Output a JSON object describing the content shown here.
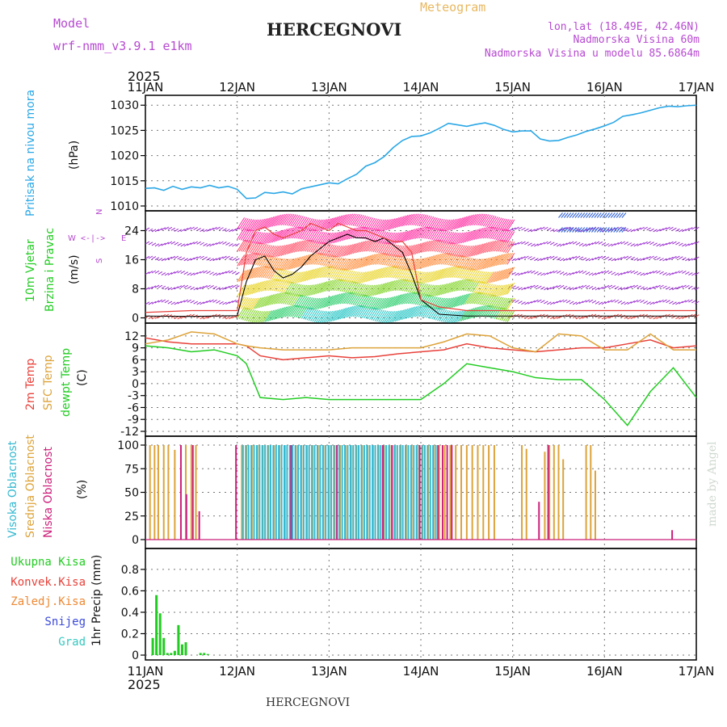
{
  "header": {
    "model_label": "Model",
    "model_name": "wrf-nmm_v3.9.1 e1km",
    "meteogram": "Meteogram",
    "station": "HERCEGNOVI",
    "lonlat": "lon,lat (18.49E, 42.46N)",
    "altitude": "Nadmorska Visina 60m",
    "model_altitude": "Nadmorska Visina u modelu 85.6864m",
    "year_top": "2025",
    "year_bottom": "2025",
    "footer_station": "HERCEGNOVI",
    "credit": "made by Angel"
  },
  "colors": {
    "pressure": "#2aa7e6",
    "temp2m": "#e8413a",
    "sfc": "#dda33a",
    "dewpt": "#22cc22",
    "high_cloud": "#35b8d0",
    "mid_cloud": "#dda33a",
    "low_cloud": "#cc1f7a",
    "precip_total": "#22cc22",
    "precip_conv": "#e8413a",
    "precip_frz": "#ee8833",
    "precip_snow": "#3b4ad8",
    "precip_hail": "#35c8c0",
    "label_magenta": "#b74ad1",
    "label_orange": "#e8b860"
  },
  "chart_data": {
    "type": "meteogram",
    "x_ticks": [
      "11JAN",
      "12JAN",
      "13JAN",
      "14JAN",
      "15JAN",
      "16JAN",
      "17JAN"
    ],
    "x_range_days": [
      0,
      6
    ],
    "panels": [
      {
        "id": "pressure",
        "type": "line",
        "label": "Pritisak na nivou mora",
        "unit": "(hPa)",
        "ylim": [
          1010,
          1031
        ],
        "yticks": [
          1010,
          1015,
          1020,
          1025,
          1030
        ],
        "x": [
          0,
          0.1,
          0.2,
          0.3,
          0.4,
          0.5,
          0.6,
          0.7,
          0.8,
          0.9,
          1.0,
          1.1,
          1.2,
          1.3,
          1.4,
          1.5,
          1.6,
          1.7,
          1.8,
          1.9,
          2.0,
          2.1,
          2.2,
          2.3,
          2.4,
          2.5,
          2.6,
          2.7,
          2.8,
          2.9,
          3.0,
          3.1,
          3.2,
          3.3,
          3.4,
          3.5,
          3.6,
          3.7,
          3.8,
          3.9,
          4.0,
          4.1,
          4.2,
          4.3,
          4.4,
          4.5,
          4.6,
          4.7,
          4.8,
          4.9,
          5.0,
          5.1,
          5.2,
          5.3,
          5.4,
          5.5,
          5.6,
          5.7,
          5.8,
          5.9,
          6.0
        ],
        "y": [
          1013.5,
          1013.6,
          1013.1,
          1013.9,
          1013.3,
          1013.8,
          1013.6,
          1014.1,
          1013.6,
          1013.9,
          1013.3,
          1011.5,
          1011.6,
          1012.7,
          1012.5,
          1012.8,
          1012.4,
          1013.4,
          1013.8,
          1014.2,
          1014.6,
          1014.4,
          1015.4,
          1016.3,
          1017.9,
          1018.6,
          1019.8,
          1021.6,
          1023.0,
          1023.8,
          1023.9,
          1024.5,
          1025.4,
          1026.4,
          1026.1,
          1025.8,
          1026.2,
          1026.5,
          1026.0,
          1025.2,
          1024.7,
          1024.9,
          1024.9,
          1023.3,
          1022.9,
          1023.0,
          1023.6,
          1024.1,
          1024.8,
          1025.3,
          1025.9,
          1026.6,
          1027.8,
          1028.1,
          1028.5,
          1029.0,
          1029.5,
          1029.8,
          1029.7,
          1029.9,
          1030.0
        ]
      },
      {
        "id": "wind",
        "type": "wind_barbs",
        "labels": [
          "10m Vjetar",
          "Brzina i Pravac"
        ],
        "unit": "(m/s)",
        "ylim": [
          -1,
          29
        ],
        "yticks": [
          0,
          8,
          16,
          24
        ],
        "compass_top": "N",
        "compass_left": "W",
        "compass_right": "E",
        "compass_bottom": "S",
        "barb_levels": [
          0,
          4,
          8,
          12,
          16,
          20,
          24,
          28
        ],
        "strong_window_days": [
          1.0,
          3.95
        ],
        "blue_window_days": [
          4.5,
          5.2
        ],
        "speed_x": [
          0,
          0.5,
          1.0,
          1.1,
          1.2,
          1.3,
          1.4,
          1.5,
          1.6,
          1.7,
          1.8,
          1.9,
          2.0,
          2.1,
          2.2,
          2.3,
          2.4,
          2.5,
          2.6,
          2.7,
          2.8,
          2.9,
          3.0,
          3.2,
          3.5,
          4.0,
          5.0,
          6.0
        ],
        "speed_y": [
          0.5,
          0.4,
          0.6,
          10,
          16,
          17,
          13,
          11,
          12,
          14,
          17,
          19,
          21,
          22,
          23,
          22,
          22,
          21,
          22,
          20,
          18,
          12,
          5,
          1,
          0.5,
          0.5,
          0.5,
          0.5
        ],
        "gust_y": [
          1.5,
          2,
          2,
          18,
          24,
          25,
          23,
          22,
          23,
          24,
          26,
          25,
          24,
          26,
          25,
          24,
          24,
          23,
          22,
          21,
          21,
          18,
          5,
          3,
          2,
          2,
          2,
          2
        ]
      },
      {
        "id": "temperature",
        "type": "line",
        "labels": [
          "2m Temp",
          "SFC Temp",
          "dewpt Temp"
        ],
        "unit": "(C)",
        "ylim": [
          -12,
          14
        ],
        "yticks": [
          12,
          9,
          6,
          3,
          0,
          -3,
          -6,
          -9,
          -12
        ],
        "x": [
          0,
          0.25,
          0.5,
          0.75,
          1.0,
          1.1,
          1.25,
          1.5,
          1.75,
          2.0,
          2.25,
          2.5,
          2.75,
          3.0,
          3.25,
          3.5,
          3.75,
          4.0,
          4.25,
          4.5,
          4.75,
          5.0,
          5.25,
          5.5,
          5.75,
          6.0
        ],
        "series": [
          {
            "name": "2m Temp",
            "values": [
              11.5,
              10.5,
              10.0,
              10.0,
              10.0,
              9.5,
              7.0,
              6.0,
              6.5,
              7.0,
              6.5,
              6.8,
              7.5,
              8.0,
              8.5,
              10.0,
              9.0,
              8.5,
              8.0,
              8.5,
              9.0,
              9.0,
              10.0,
              11.0,
              9.0,
              9.5
            ]
          },
          {
            "name": "SFC Temp",
            "values": [
              10.0,
              11.0,
              13.0,
              12.5,
              10.0,
              9.5,
              9.0,
              8.5,
              8.5,
              8.5,
              9.0,
              9.0,
              9.0,
              9.0,
              10.5,
              12.5,
              12.0,
              9.0,
              8.0,
              12.5,
              12.0,
              8.5,
              8.5,
              12.5,
              8.5,
              8.5
            ]
          },
          {
            "name": "dewpt Temp",
            "values": [
              9.5,
              9.0,
              8.0,
              8.5,
              7.0,
              5.0,
              -3.5,
              -4.0,
              -3.5,
              -4.0,
              -4.0,
              -4.0,
              -4.0,
              -4.0,
              0.0,
              5.0,
              4.0,
              3.0,
              1.5,
              1.0,
              1.0,
              -4.0,
              -10.5,
              -2.0,
              4.0,
              -3.5
            ]
          }
        ]
      },
      {
        "id": "clouds",
        "type": "bar",
        "labels": [
          "Visoka Oblacnost",
          "Srednja Oblacnost",
          "Niska Oblacnost"
        ],
        "unit": "(%)",
        "ylim": [
          0,
          100
        ],
        "yticks": [
          0,
          25,
          50,
          75,
          100
        ],
        "high_x": [
          1.05,
          1.08,
          1.11,
          1.14,
          1.17,
          1.2,
          1.23,
          1.26,
          1.29,
          1.32,
          1.35,
          1.38,
          1.41,
          1.44,
          1.47,
          1.5,
          1.53,
          1.56,
          1.59,
          1.62,
          1.65,
          1.68,
          1.71,
          1.74,
          1.77,
          1.8,
          1.83,
          1.86,
          1.89,
          1.92,
          1.95,
          1.98,
          2.01,
          2.04,
          2.07,
          2.1,
          2.13,
          2.16,
          2.19,
          2.22,
          2.25,
          2.28,
          2.31,
          2.34,
          2.37,
          2.4,
          2.43,
          2.46,
          2.49,
          2.52,
          2.55,
          2.58,
          2.61,
          2.64,
          2.67,
          2.7,
          2.73,
          2.76,
          2.79,
          2.82,
          2.85,
          2.88,
          2.91,
          2.94,
          2.97,
          3.0,
          3.03,
          3.06,
          3.09,
          3.12,
          3.15
        ],
        "high_y": [
          100,
          100,
          100,
          100,
          100,
          100,
          100,
          100,
          100,
          100,
          100,
          100,
          100,
          100,
          100,
          100,
          100,
          100,
          100,
          100,
          100,
          100,
          100,
          100,
          100,
          100,
          100,
          100,
          100,
          100,
          100,
          100,
          100,
          100,
          100,
          100,
          100,
          100,
          100,
          100,
          100,
          100,
          100,
          100,
          100,
          100,
          100,
          100,
          100,
          100,
          100,
          100,
          100,
          100,
          100,
          100,
          100,
          100,
          100,
          100,
          100,
          100,
          100,
          100,
          100,
          100,
          100,
          100,
          100,
          100,
          100
        ],
        "mid_x": [
          0.05,
          0.1,
          0.14,
          0.2,
          0.25,
          0.32,
          0.44,
          0.5,
          0.55,
          1.05,
          1.1,
          1.16,
          1.22,
          1.28,
          1.34,
          1.4,
          1.46,
          1.52,
          1.58,
          1.64,
          1.7,
          1.76,
          1.82,
          1.88,
          1.94,
          2.0,
          2.06,
          2.12,
          2.18,
          2.24,
          2.3,
          2.36,
          2.42,
          2.48,
          2.54,
          2.6,
          2.66,
          2.72,
          2.78,
          2.84,
          2.9,
          2.96,
          3.02,
          3.08,
          3.14,
          3.2,
          3.26,
          3.32,
          3.38,
          3.44,
          3.5,
          3.56,
          3.62,
          3.68,
          3.74,
          3.8,
          4.1,
          4.15,
          4.35,
          4.4,
          4.45,
          4.5,
          4.55,
          4.8,
          4.85,
          4.9
        ],
        "mid_y": [
          100,
          100,
          100,
          100,
          100,
          95,
          100,
          100,
          100,
          100,
          100,
          100,
          100,
          100,
          100,
          100,
          100,
          100,
          100,
          100,
          100,
          100,
          100,
          100,
          100,
          100,
          100,
          100,
          100,
          100,
          100,
          100,
          100,
          100,
          100,
          100,
          100,
          100,
          100,
          100,
          100,
          100,
          100,
          100,
          100,
          100,
          100,
          100,
          100,
          100,
          100,
          100,
          100,
          100,
          100,
          100,
          100,
          96,
          93,
          100,
          100,
          100,
          85,
          100,
          100,
          73
        ],
        "low_x": [
          0.4,
          0.46,
          0.53,
          0.6,
          1.0,
          1.6,
          2.1,
          2.6,
          2.7,
          3.0,
          3.2,
          3.25,
          3.3,
          3.35,
          4.3,
          4.4,
          5.75
        ],
        "low_y": [
          100,
          48,
          100,
          30,
          100,
          100,
          100,
          100,
          100,
          100,
          100,
          100,
          100,
          100,
          40,
          100,
          10
        ]
      },
      {
        "id": "precip",
        "type": "bar",
        "labels": [
          "Ukupna Kisa",
          "Konvek.Kisa",
          "Zaledj.Kisa",
          "Snijeg",
          "Grad"
        ],
        "unit": "1hr Precip (mm)",
        "ylim": [
          0,
          0.95
        ],
        "yticks": [
          0,
          0.2,
          0.4,
          0.6,
          0.8
        ],
        "x": [
          0.08,
          0.12,
          0.16,
          0.2,
          0.24,
          0.28,
          0.32,
          0.36,
          0.4,
          0.44,
          0.6,
          0.64,
          0.68
        ],
        "values": [
          0.16,
          0.56,
          0.39,
          0.16,
          0.02,
          0.02,
          0.04,
          0.28,
          0.1,
          0.12,
          0.02,
          0.02,
          0.01
        ]
      }
    ]
  }
}
